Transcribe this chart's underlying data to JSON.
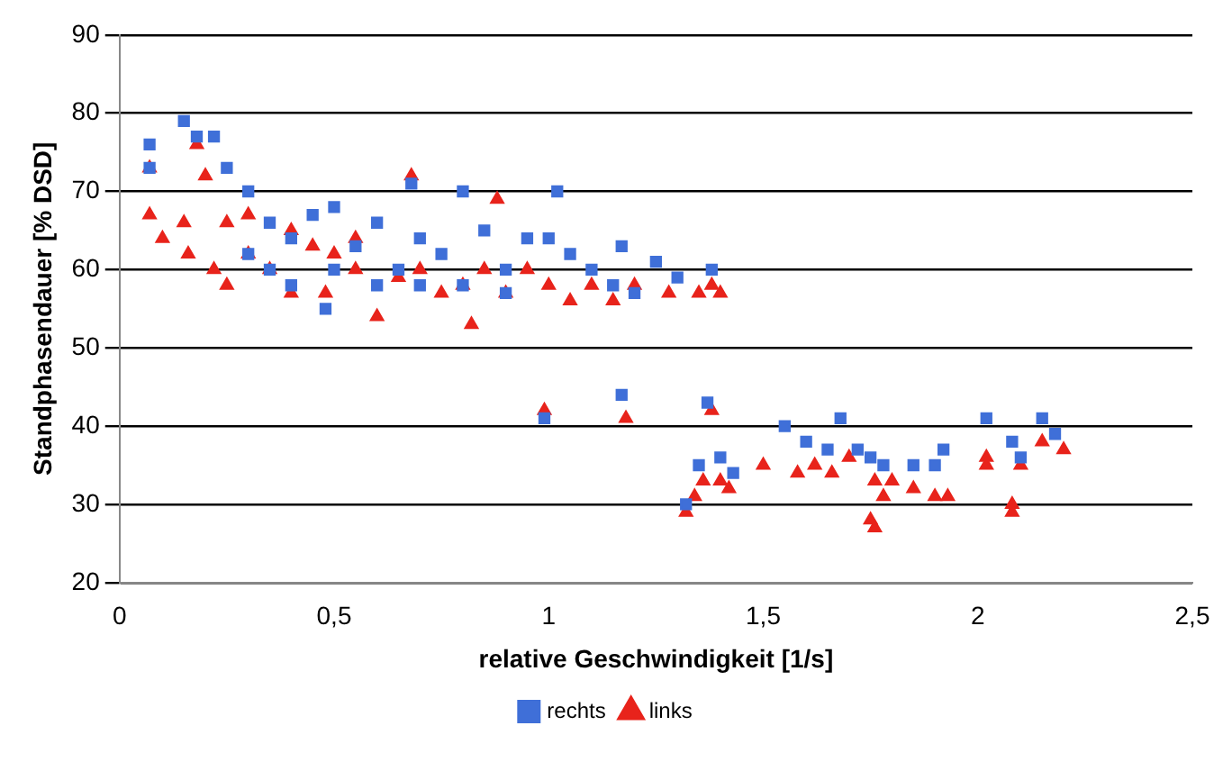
{
  "chart_data": {
    "type": "scatter",
    "xlabel": "relative Geschwindigkeit [1/s]",
    "ylabel": "Standphasendauer [% DSD]",
    "xlim": [
      0,
      2.5
    ],
    "xticks": [
      0,
      {
        "value": 0.5,
        "label": "0,5"
      },
      1,
      {
        "value": 1.5,
        "label": "1,5"
      },
      2,
      {
        "value": 2.5,
        "label": "2,5"
      }
    ],
    "ylim": [
      20,
      90
    ],
    "yticks": [
      20,
      30,
      40,
      50,
      60,
      70,
      80,
      90
    ],
    "grid": "y",
    "legend": "bottom",
    "series": [
      {
        "name": "rechts",
        "color": "#3f6fd8",
        "marker": "square",
        "x": [
          0.07,
          0.07,
          0.15,
          0.18,
          0.22,
          0.25,
          0.3,
          0.35,
          0.4,
          0.45,
          0.5,
          0.48,
          0.55,
          0.6,
          0.65,
          0.68,
          0.7,
          0.75,
          0.8,
          0.85,
          0.9,
          0.95,
          1.0,
          1.02,
          1.05,
          1.1,
          1.15,
          1.17,
          1.25,
          1.3,
          1.38,
          0.99,
          1.17,
          1.32,
          1.35,
          1.37,
          1.4,
          1.43,
          1.55,
          1.6,
          1.65,
          1.68,
          1.72,
          1.75,
          1.78,
          1.85,
          1.9,
          1.92,
          2.02,
          2.08,
          2.1,
          2.15,
          2.18,
          0.3,
          0.4,
          0.6,
          0.8,
          0.9,
          0.35,
          0.5,
          0.7,
          1.2
        ],
        "values": [
          76,
          73,
          79,
          77,
          77,
          73,
          70,
          66,
          64,
          67,
          68,
          55,
          63,
          66,
          60,
          71,
          64,
          62,
          70,
          65,
          60,
          64,
          64,
          70,
          62,
          60,
          58,
          63,
          61,
          59,
          60,
          41,
          44,
          30,
          35,
          43,
          36,
          34,
          40,
          38,
          37,
          41,
          37,
          36,
          35,
          35,
          35,
          37,
          41,
          38,
          36,
          41,
          39,
          62,
          58,
          58,
          58,
          57,
          60,
          60,
          58,
          57
        ]
      },
      {
        "name": "links",
        "color": "#e8231b",
        "marker": "triangle",
        "x": [
          0.07,
          0.07,
          0.1,
          0.15,
          0.16,
          0.18,
          0.2,
          0.22,
          0.25,
          0.25,
          0.3,
          0.35,
          0.4,
          0.45,
          0.48,
          0.5,
          0.55,
          0.6,
          0.65,
          0.68,
          0.7,
          0.75,
          0.8,
          0.82,
          0.85,
          0.88,
          0.9,
          0.95,
          1.0,
          1.05,
          1.1,
          1.15,
          1.2,
          1.28,
          1.35,
          1.38,
          1.4,
          0.3,
          0.4,
          0.55,
          0.99,
          1.18,
          1.32,
          1.34,
          1.36,
          1.38,
          1.4,
          1.42,
          1.5,
          1.58,
          1.62,
          1.66,
          1.7,
          1.75,
          1.76,
          1.76,
          1.78,
          1.8,
          1.85,
          1.9,
          1.93,
          2.02,
          2.02,
          2.08,
          2.08,
          2.1,
          2.15,
          2.2
        ],
        "values": [
          73,
          67,
          64,
          66,
          62,
          76,
          72,
          60,
          58,
          66,
          62,
          60,
          57,
          63,
          57,
          62,
          60,
          54,
          59,
          72,
          60,
          57,
          58,
          53,
          60,
          69,
          57,
          60,
          58,
          56,
          58,
          56,
          58,
          57,
          57,
          58,
          57,
          67,
          65,
          64,
          42,
          41,
          29,
          31,
          33,
          42,
          33,
          32,
          35,
          34,
          35,
          34,
          36,
          28,
          27,
          33,
          31,
          33,
          32,
          31,
          31,
          36,
          35,
          30,
          29,
          35,
          38,
          37
        ]
      }
    ]
  }
}
